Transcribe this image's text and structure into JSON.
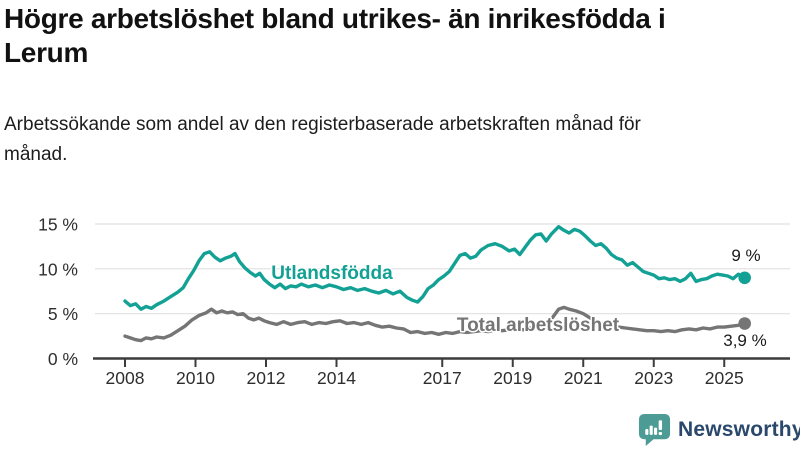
{
  "header": {
    "title": "Högre arbetslöshet bland utrikes- än inrikesfödda i Lerum",
    "subtitle": "Arbetssökande som andel av den registerbaserade arbetskraften månad för månad."
  },
  "footer": {
    "brand": "Newsworthy",
    "brand_color": "#29486B",
    "icon": "bar-chart-speech-bubble-icon",
    "icon_color": "#4C9B94"
  },
  "chart_data": {
    "type": "line",
    "title": "Högre arbetslöshet bland utrikes- än inrikesfödda i Lerum",
    "subtitle": "Arbetssökande som andel av den registerbaserade arbetskraften månad för månad.",
    "xlabel": "",
    "ylabel": "",
    "yunit": "%",
    "ylim": [
      0,
      15
    ],
    "xlim": [
      2008,
      2025.6
    ],
    "grid": "horizontal",
    "legend_position": "inline-labels",
    "y_ticks": [
      {
        "value": 0,
        "label": "0 %"
      },
      {
        "value": 5,
        "label": "5 %"
      },
      {
        "value": 10,
        "label": "10 %"
      },
      {
        "value": 15,
        "label": "15 %"
      }
    ],
    "x_ticks": [
      {
        "value": 2008,
        "label": "2008"
      },
      {
        "value": 2010,
        "label": "2010"
      },
      {
        "value": 2012,
        "label": "2012"
      },
      {
        "value": 2014,
        "label": "2014"
      },
      {
        "value": 2017,
        "label": "2017"
      },
      {
        "value": 2019,
        "label": "2019"
      },
      {
        "value": 2021,
        "label": "2021"
      },
      {
        "value": 2023,
        "label": "2023"
      },
      {
        "value": 2025,
        "label": "2025"
      }
    ],
    "series": [
      {
        "name": "Utlandsfödda",
        "color": "#12A194",
        "end_label": "9 %",
        "end_value": 9.0,
        "points": [
          [
            2008.0,
            6.4
          ],
          [
            2008.15,
            5.9
          ],
          [
            2008.3,
            6.1
          ],
          [
            2008.45,
            5.5
          ],
          [
            2008.6,
            5.8
          ],
          [
            2008.75,
            5.6
          ],
          [
            2008.9,
            6.0
          ],
          [
            2009.1,
            6.4
          ],
          [
            2009.3,
            6.9
          ],
          [
            2009.5,
            7.4
          ],
          [
            2009.65,
            7.9
          ],
          [
            2009.8,
            8.9
          ],
          [
            2009.95,
            9.8
          ],
          [
            2010.1,
            10.9
          ],
          [
            2010.25,
            11.7
          ],
          [
            2010.4,
            11.9
          ],
          [
            2010.55,
            11.3
          ],
          [
            2010.7,
            10.9
          ],
          [
            2010.85,
            11.2
          ],
          [
            2011.0,
            11.4
          ],
          [
            2011.12,
            11.7
          ],
          [
            2011.25,
            10.8
          ],
          [
            2011.4,
            10.1
          ],
          [
            2011.55,
            9.6
          ],
          [
            2011.7,
            9.2
          ],
          [
            2011.82,
            9.5
          ],
          [
            2011.95,
            8.8
          ],
          [
            2012.1,
            8.3
          ],
          [
            2012.25,
            7.9
          ],
          [
            2012.4,
            8.3
          ],
          [
            2012.55,
            7.8
          ],
          [
            2012.7,
            8.1
          ],
          [
            2012.85,
            8.0
          ],
          [
            2013.0,
            8.3
          ],
          [
            2013.2,
            8.0
          ],
          [
            2013.4,
            8.2
          ],
          [
            2013.6,
            7.9
          ],
          [
            2013.8,
            8.2
          ],
          [
            2014.0,
            8.0
          ],
          [
            2014.2,
            7.7
          ],
          [
            2014.4,
            7.9
          ],
          [
            2014.6,
            7.6
          ],
          [
            2014.8,
            7.8
          ],
          [
            2015.0,
            7.5
          ],
          [
            2015.2,
            7.3
          ],
          [
            2015.4,
            7.6
          ],
          [
            2015.6,
            7.2
          ],
          [
            2015.8,
            7.5
          ],
          [
            2016.0,
            6.8
          ],
          [
            2016.15,
            6.5
          ],
          [
            2016.3,
            6.3
          ],
          [
            2016.45,
            6.9
          ],
          [
            2016.6,
            7.8
          ],
          [
            2016.75,
            8.2
          ],
          [
            2016.9,
            8.8
          ],
          [
            2017.05,
            9.2
          ],
          [
            2017.2,
            9.7
          ],
          [
            2017.35,
            10.6
          ],
          [
            2017.5,
            11.5
          ],
          [
            2017.65,
            11.7
          ],
          [
            2017.8,
            11.2
          ],
          [
            2017.95,
            11.4
          ],
          [
            2018.1,
            12.1
          ],
          [
            2018.3,
            12.6
          ],
          [
            2018.5,
            12.8
          ],
          [
            2018.7,
            12.5
          ],
          [
            2018.9,
            12.0
          ],
          [
            2019.05,
            12.2
          ],
          [
            2019.2,
            11.6
          ],
          [
            2019.35,
            12.4
          ],
          [
            2019.5,
            13.2
          ],
          [
            2019.65,
            13.8
          ],
          [
            2019.8,
            13.9
          ],
          [
            2019.95,
            13.1
          ],
          [
            2020.1,
            13.9
          ],
          [
            2020.3,
            14.7
          ],
          [
            2020.45,
            14.3
          ],
          [
            2020.6,
            14.0
          ],
          [
            2020.75,
            14.4
          ],
          [
            2020.9,
            14.2
          ],
          [
            2021.05,
            13.7
          ],
          [
            2021.2,
            13.1
          ],
          [
            2021.35,
            12.6
          ],
          [
            2021.5,
            12.8
          ],
          [
            2021.65,
            12.3
          ],
          [
            2021.8,
            11.6
          ],
          [
            2021.95,
            11.2
          ],
          [
            2022.1,
            11.0
          ],
          [
            2022.25,
            10.4
          ],
          [
            2022.4,
            10.7
          ],
          [
            2022.55,
            10.2
          ],
          [
            2022.7,
            9.7
          ],
          [
            2022.85,
            9.5
          ],
          [
            2023.0,
            9.3
          ],
          [
            2023.15,
            8.9
          ],
          [
            2023.3,
            9.0
          ],
          [
            2023.45,
            8.8
          ],
          [
            2023.6,
            8.9
          ],
          [
            2023.75,
            8.6
          ],
          [
            2023.9,
            8.9
          ],
          [
            2024.05,
            9.5
          ],
          [
            2024.2,
            8.6
          ],
          [
            2024.35,
            8.8
          ],
          [
            2024.5,
            8.9
          ],
          [
            2024.65,
            9.2
          ],
          [
            2024.8,
            9.4
          ],
          [
            2024.95,
            9.3
          ],
          [
            2025.1,
            9.2
          ],
          [
            2025.25,
            8.9
          ],
          [
            2025.4,
            9.4
          ],
          [
            2025.58,
            9.0
          ]
        ]
      },
      {
        "name": "Total arbetslöshet",
        "color": "#757575",
        "end_label": "3,9 %",
        "end_value": 3.9,
        "points": [
          [
            2008.0,
            2.5
          ],
          [
            2008.15,
            2.3
          ],
          [
            2008.3,
            2.1
          ],
          [
            2008.45,
            2.0
          ],
          [
            2008.6,
            2.3
          ],
          [
            2008.75,
            2.2
          ],
          [
            2008.9,
            2.4
          ],
          [
            2009.1,
            2.3
          ],
          [
            2009.3,
            2.6
          ],
          [
            2009.5,
            3.1
          ],
          [
            2009.7,
            3.6
          ],
          [
            2009.9,
            4.3
          ],
          [
            2010.1,
            4.8
          ],
          [
            2010.3,
            5.1
          ],
          [
            2010.45,
            5.5
          ],
          [
            2010.6,
            5.1
          ],
          [
            2010.75,
            5.3
          ],
          [
            2010.9,
            5.1
          ],
          [
            2011.05,
            5.2
          ],
          [
            2011.2,
            4.9
          ],
          [
            2011.35,
            5.0
          ],
          [
            2011.5,
            4.5
          ],
          [
            2011.65,
            4.3
          ],
          [
            2011.8,
            4.5
          ],
          [
            2011.95,
            4.2
          ],
          [
            2012.1,
            4.0
          ],
          [
            2012.3,
            3.8
          ],
          [
            2012.5,
            4.1
          ],
          [
            2012.7,
            3.8
          ],
          [
            2012.9,
            4.0
          ],
          [
            2013.1,
            4.1
          ],
          [
            2013.3,
            3.8
          ],
          [
            2013.5,
            4.0
          ],
          [
            2013.7,
            3.9
          ],
          [
            2013.9,
            4.1
          ],
          [
            2014.1,
            4.2
          ],
          [
            2014.3,
            3.9
          ],
          [
            2014.5,
            4.0
          ],
          [
            2014.7,
            3.8
          ],
          [
            2014.9,
            4.0
          ],
          [
            2015.1,
            3.7
          ],
          [
            2015.3,
            3.5
          ],
          [
            2015.5,
            3.6
          ],
          [
            2015.7,
            3.4
          ],
          [
            2015.9,
            3.3
          ],
          [
            2016.1,
            2.9
          ],
          [
            2016.3,
            3.0
          ],
          [
            2016.5,
            2.8
          ],
          [
            2016.7,
            2.9
          ],
          [
            2016.9,
            2.7
          ],
          [
            2017.1,
            2.9
          ],
          [
            2017.3,
            2.8
          ],
          [
            2017.5,
            3.0
          ],
          [
            2017.7,
            2.9
          ],
          [
            2017.9,
            3.0
          ],
          [
            2018.1,
            3.1
          ],
          [
            2018.3,
            3.0
          ],
          [
            2018.5,
            3.2
          ],
          [
            2018.7,
            3.1
          ],
          [
            2018.9,
            3.2
          ],
          [
            2019.1,
            3.3
          ],
          [
            2019.3,
            3.2
          ],
          [
            2019.5,
            3.4
          ],
          [
            2019.7,
            3.5
          ],
          [
            2019.9,
            3.8
          ],
          [
            2020.1,
            4.4
          ],
          [
            2020.3,
            5.5
          ],
          [
            2020.45,
            5.7
          ],
          [
            2020.6,
            5.5
          ],
          [
            2020.8,
            5.3
          ],
          [
            2021.0,
            5.0
          ],
          [
            2021.2,
            4.5
          ],
          [
            2021.4,
            4.1
          ],
          [
            2021.6,
            3.8
          ],
          [
            2021.8,
            3.6
          ],
          [
            2022.0,
            3.5
          ],
          [
            2022.2,
            3.4
          ],
          [
            2022.4,
            3.3
          ],
          [
            2022.6,
            3.2
          ],
          [
            2022.8,
            3.1
          ],
          [
            2023.0,
            3.1
          ],
          [
            2023.2,
            3.0
          ],
          [
            2023.4,
            3.1
          ],
          [
            2023.6,
            3.0
          ],
          [
            2023.8,
            3.2
          ],
          [
            2024.0,
            3.3
          ],
          [
            2024.2,
            3.2
          ],
          [
            2024.4,
            3.4
          ],
          [
            2024.6,
            3.3
          ],
          [
            2024.8,
            3.5
          ],
          [
            2025.0,
            3.5
          ],
          [
            2025.2,
            3.6
          ],
          [
            2025.4,
            3.7
          ],
          [
            2025.58,
            3.9
          ]
        ]
      }
    ]
  }
}
